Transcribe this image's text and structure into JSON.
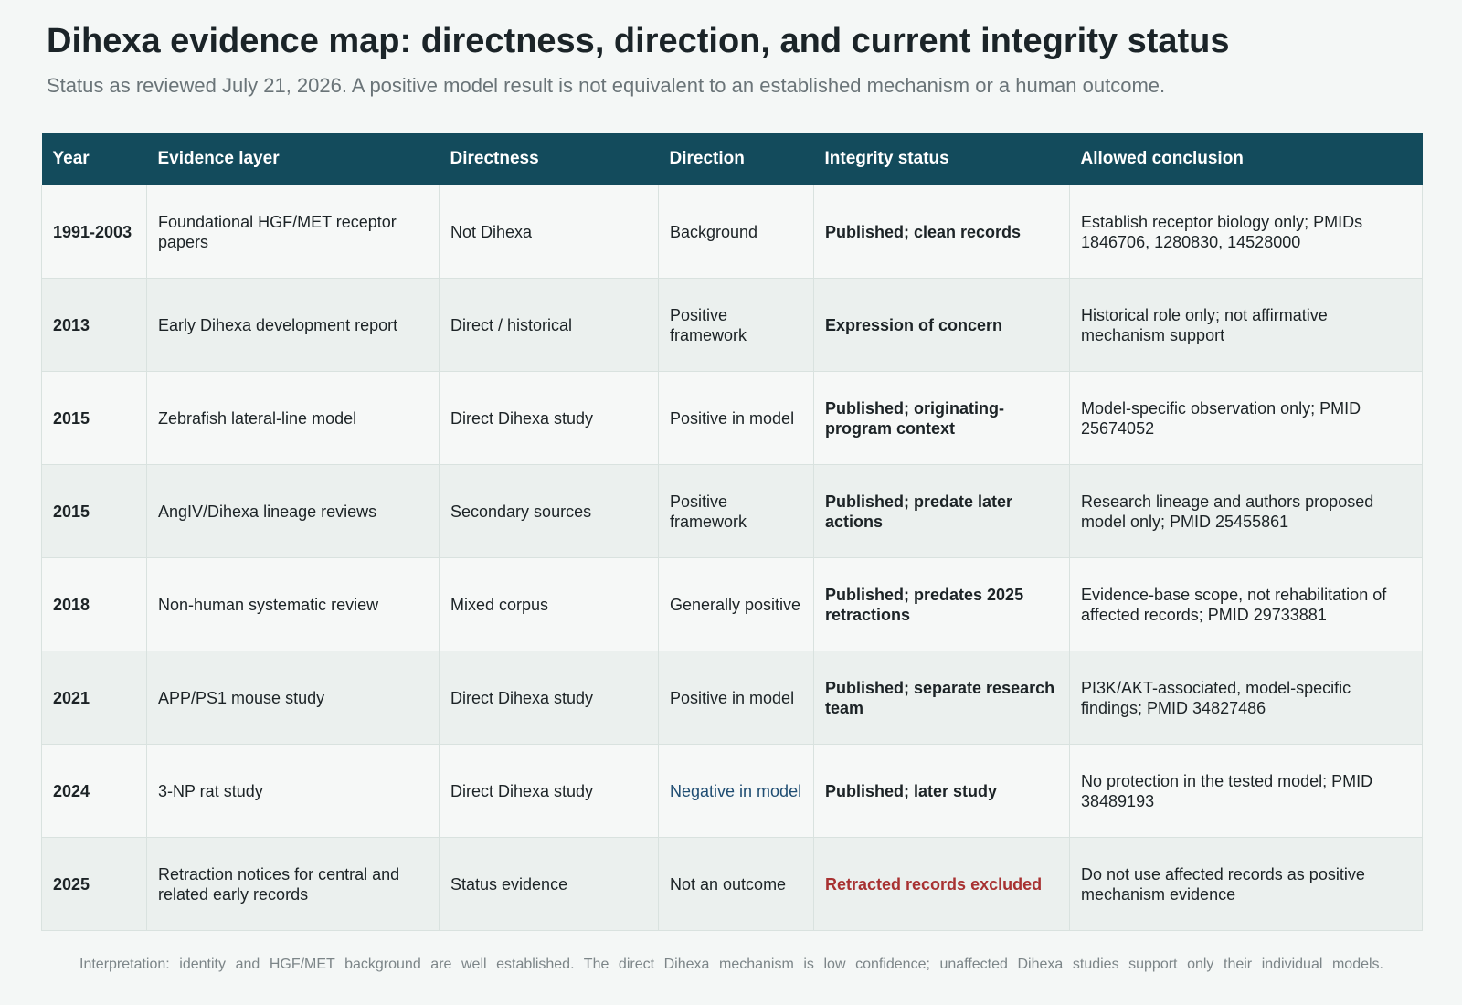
{
  "header": {
    "title": "Dihexa evidence map: directness, direction, and current integrity status",
    "subtitle": "Status as reviewed July 21, 2026. A positive model result is not equivalent to an established mechanism or a human outcome."
  },
  "table": {
    "columns": [
      "Year",
      "Evidence layer",
      "Directness",
      "Direction",
      "Integrity status",
      "Allowed conclusion"
    ],
    "rows": [
      {
        "year": "1991-2003",
        "layer": "Foundational HGF/MET receptor papers",
        "directness": "Not Dihexa",
        "direction": "Background",
        "integrity": "Published; clean records",
        "conclusion": "Establish receptor biology only; PMIDs 1846706, 1280830, 14528000"
      },
      {
        "year": "2013",
        "layer": "Early Dihexa development report",
        "directness": "Direct / historical",
        "direction": "Positive framework",
        "integrity": "Expression of concern",
        "conclusion": "Historical role only; not affirmative mechanism support"
      },
      {
        "year": "2015",
        "layer": "Zebrafish lateral-line model",
        "directness": "Direct Dihexa study",
        "direction": "Positive in model",
        "integrity": "Published; originating-program context",
        "conclusion": "Model-specific observation only; PMID 25674052"
      },
      {
        "year": "2015",
        "layer": "AngIV/Dihexa lineage reviews",
        "directness": "Secondary sources",
        "direction": "Positive framework",
        "integrity": "Published; predate later actions",
        "conclusion": "Research lineage and authors proposed model only; PMID 25455861"
      },
      {
        "year": "2018",
        "layer": "Non-human systematic review",
        "directness": "Mixed corpus",
        "direction": "Generally positive",
        "integrity": "Published; predates 2025 retractions",
        "conclusion": "Evidence-base scope, not rehabilitation of affected records; PMID 29733881"
      },
      {
        "year": "2021",
        "layer": "APP/PS1 mouse study",
        "directness": "Direct Dihexa study",
        "direction": "Positive in model",
        "integrity": "Published; separate research team",
        "conclusion": "PI3K/AKT-associated, model-specific findings; PMID 34827486"
      },
      {
        "year": "2024",
        "layer": "3-NP rat study",
        "directness": "Direct Dihexa study",
        "direction": "Negative in model",
        "integrity": "Published; later study",
        "conclusion": "No protection in the tested model; PMID 38489193"
      },
      {
        "year": "2025",
        "layer": "Retraction notices for central and related early records",
        "directness": "Status evidence",
        "direction": "Not an outcome",
        "integrity": "Retracted records excluded",
        "conclusion": "Do not use affected records as positive mechanism evidence"
      }
    ]
  },
  "footnote": "Interpretation: identity and HGF/MET background are well established. The direct Dihexa mechanism is low confidence; unaffected Dihexa studies support only their individual models.",
  "colors": {
    "header_bg": "#134b5c",
    "alert_text": "#a83232",
    "negative_text": "#1f4d72"
  }
}
